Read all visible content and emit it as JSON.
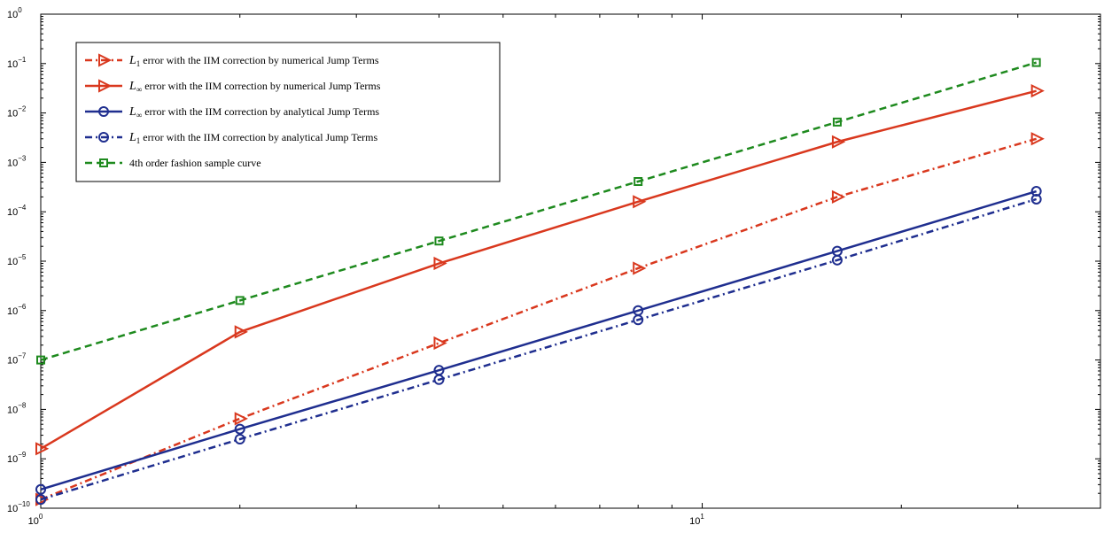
{
  "chart_data": {
    "type": "line",
    "title": "",
    "xlabel": "",
    "ylabel": "",
    "x_scale": "log",
    "y_scale": "log",
    "xlim": [
      1,
      40
    ],
    "ylim": [
      1e-10,
      1
    ],
    "grid": false,
    "legend_position": "top-left",
    "x_ticks": [
      {
        "value": 1,
        "base": "10",
        "exp": "0"
      },
      {
        "value": 10,
        "base": "10",
        "exp": "1"
      }
    ],
    "y_ticks": [
      {
        "value": 1e-10,
        "base": "10",
        "exp": "−10"
      },
      {
        "value": 1e-09,
        "base": "10",
        "exp": "−9"
      },
      {
        "value": 1e-08,
        "base": "10",
        "exp": "−8"
      },
      {
        "value": 1e-07,
        "base": "10",
        "exp": "−7"
      },
      {
        "value": 1e-06,
        "base": "10",
        "exp": "−6"
      },
      {
        "value": 1e-05,
        "base": "10",
        "exp": "−5"
      },
      {
        "value": 0.0001,
        "base": "10",
        "exp": "−4"
      },
      {
        "value": 0.001,
        "base": "10",
        "exp": "−3"
      },
      {
        "value": 0.01,
        "base": "10",
        "exp": "−2"
      },
      {
        "value": 0.1,
        "base": "10",
        "exp": "−1"
      },
      {
        "value": 1,
        "base": "10",
        "exp": "0"
      }
    ],
    "x": [
      1,
      2,
      4,
      8,
      16,
      32
    ],
    "series": [
      {
        "name": "L1 error with the IIM correction by numerical Jump Terms",
        "label_sym": "L",
        "label_sub": "1",
        "label_rest": " error with the IIM correction by numerical Jump Terms",
        "color": "#d9381e",
        "dash": "dashdot",
        "marker": "triangle-right-open",
        "values": [
          1.5e-10,
          6.5e-09,
          2.2e-07,
          7.2e-06,
          0.0002,
          0.003
        ]
      },
      {
        "name": "L∞ error with the IIM correction by numerical Jump Terms",
        "label_sym": "L",
        "label_sub": "∞",
        "label_rest": " error with the IIM correction by numerical Jump Terms",
        "color": "#d9381e",
        "dash": "solid",
        "marker": "triangle-right-open",
        "values": [
          1.6e-09,
          3.7e-07,
          9e-06,
          0.00016,
          0.0026,
          0.028
        ]
      },
      {
        "name": "L∞ error with the IIM correction by analytical Jump Terms",
        "label_sym": "L",
        "label_sub": "∞",
        "label_rest": " error with the IIM correction by analytical Jump Terms",
        "color": "#1f2e8f",
        "dash": "solid",
        "marker": "circle-open",
        "values": [
          2.4e-10,
          4e-09,
          6.2e-08,
          1e-06,
          1.6e-05,
          0.00026
        ]
      },
      {
        "name": "L1 error with the IIM correction by analytical Jump Terms",
        "label_sym": "L",
        "label_sub": "1",
        "label_rest": " error with the IIM correction by analytical Jump Terms",
        "color": "#1f2e8f",
        "dash": "dashdot",
        "marker": "circle-open",
        "values": [
          1.5e-10,
          2.5e-09,
          4e-08,
          6.5e-07,
          1.05e-05,
          0.00018
        ]
      },
      {
        "name": "4th order fashion sample curve",
        "label_sym": "",
        "label_sub": "",
        "label_rest": "4th order fashion sample curve",
        "color": "#1e8a1e",
        "dash": "dashed",
        "marker": "square-open",
        "values": [
          1e-07,
          1.6e-06,
          2.56e-05,
          0.00041,
          0.00655,
          0.105
        ]
      }
    ]
  }
}
